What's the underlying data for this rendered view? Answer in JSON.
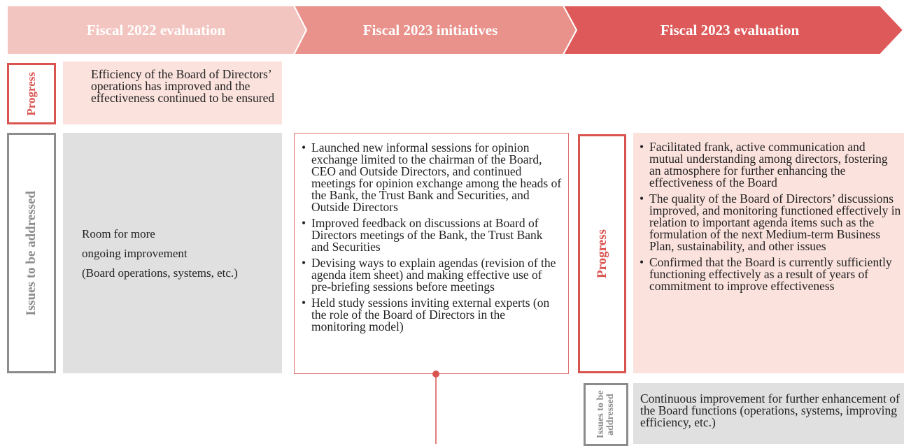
{
  "header": {
    "steps": [
      "Fiscal 2022 evaluation",
      "Fiscal 2023 initiatives",
      "Fiscal 2023 evaluation"
    ]
  },
  "fiscal_2022": {
    "progress_label": "Progress",
    "progress_text": "Efficiency of the Board of Directors’ operations has improved and the effectiveness continued to be ensured",
    "issues_label": "Issues to be addressed",
    "issues_lines": [
      "Room for more",
      "ongoing improvement",
      "(Board operations, systems, etc.)"
    ]
  },
  "initiatives_2023": {
    "items": [
      "Launched new informal sessions for opinion exchange limited to the chairman of the Board, CEO and Outside Directors, and continued meetings for opinion exchange among the heads of the Bank, the Trust Bank and Securities, and Outside Directors",
      "Improved feedback on discussions at Board of Directors meetings of the Bank, the Trust Bank and Securities",
      "Devising ways to explain agendas (revision of the agenda item sheet) and making effective use of pre-briefing sessions before meetings",
      "Held study sessions inviting external experts (on the role of the Board of Directors in the monitoring model)"
    ]
  },
  "fiscal_2023": {
    "progress_label": "Progress",
    "progress_items": [
      "Facilitated frank, active communication and mutual understanding among directors, fostering an atmosphere for further enhancing the effectiveness of the Board",
      "The quality of the Board of Directors’ discussions improved, and monitoring functioned effectively in relation to important agenda items such as the formulation of the next Medium-term Business Plan, sustainability, and other issues",
      "Confirmed that the Board is currently sufficiently functioning effectively as a result of years of commitment to improve effectiveness"
    ],
    "issues_label": "Issues to be addressed",
    "issues_text": "Continuous improvement for further enhancement of the Board functions (operations, systems, improving efficiency, etc.)"
  }
}
